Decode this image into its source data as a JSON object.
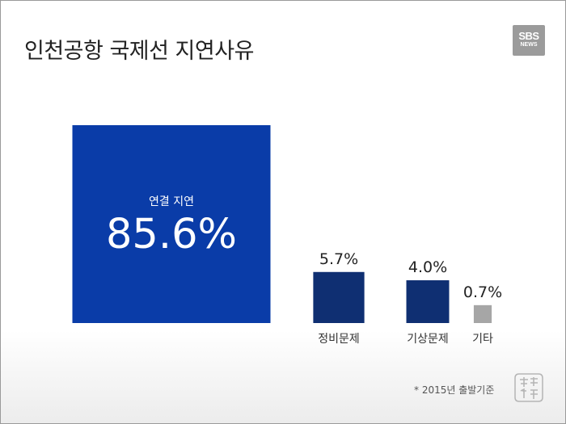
{
  "title": "인천공항 국제선 지연사유",
  "logo": {
    "line1": "SBS",
    "line2": "NEWS"
  },
  "footnote": "* 2015년 출발기준",
  "stamp_text": "畵齊作針",
  "chart_data": {
    "type": "area-squares",
    "unit": "%",
    "categories": [
      "연결 지연",
      "정비문제",
      "기상문제",
      "기타"
    ],
    "values": [
      85.6,
      5.7,
      4.0,
      0.7
    ],
    "value_labels": [
      "85.6%",
      "5.7%",
      "4.0%",
      "0.7%"
    ],
    "colors": [
      "#0a3ca8",
      "#0f2f72",
      "#0f2f72",
      "#a6a6a6"
    ]
  }
}
